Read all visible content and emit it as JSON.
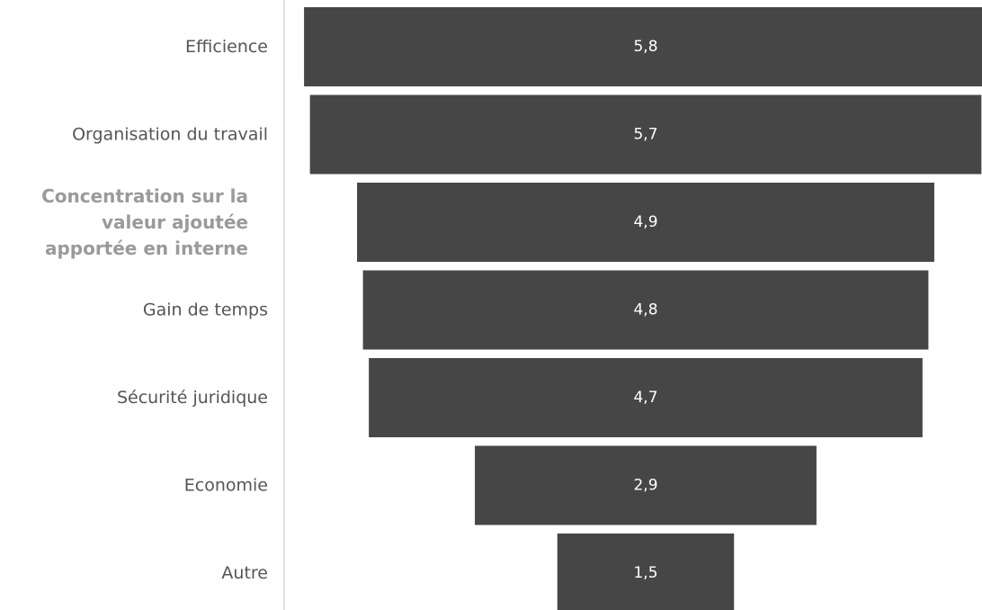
{
  "chart_data": {
    "type": "bar",
    "subtype": "funnel",
    "orientation": "horizontal",
    "categories": [
      "Efficience",
      "Organisation du travail",
      "Concentration sur la valeur ajoutée apportée en interne",
      "Gain de temps",
      "Sécurité juridique",
      "Economie",
      "Autre"
    ],
    "values": [
      5.8,
      5.7,
      4.9,
      4.8,
      4.7,
      2.9,
      1.5
    ],
    "data_labels": [
      "5,8",
      "5,7",
      "4,9",
      "4,8",
      "4,7",
      "2,9",
      "1,5"
    ],
    "highlighted_category": "Concentration sur la valeur ajoutée apportée en interne",
    "title": "",
    "xlabel": "",
    "ylabel": "",
    "grid": false,
    "legend": "none",
    "colors": {
      "bar": "#464646",
      "bar_label": "#ffffff",
      "category_label": "#555555",
      "highlighted_label": "#9a9a9a",
      "axis_line": "#d9d9d9"
    }
  }
}
